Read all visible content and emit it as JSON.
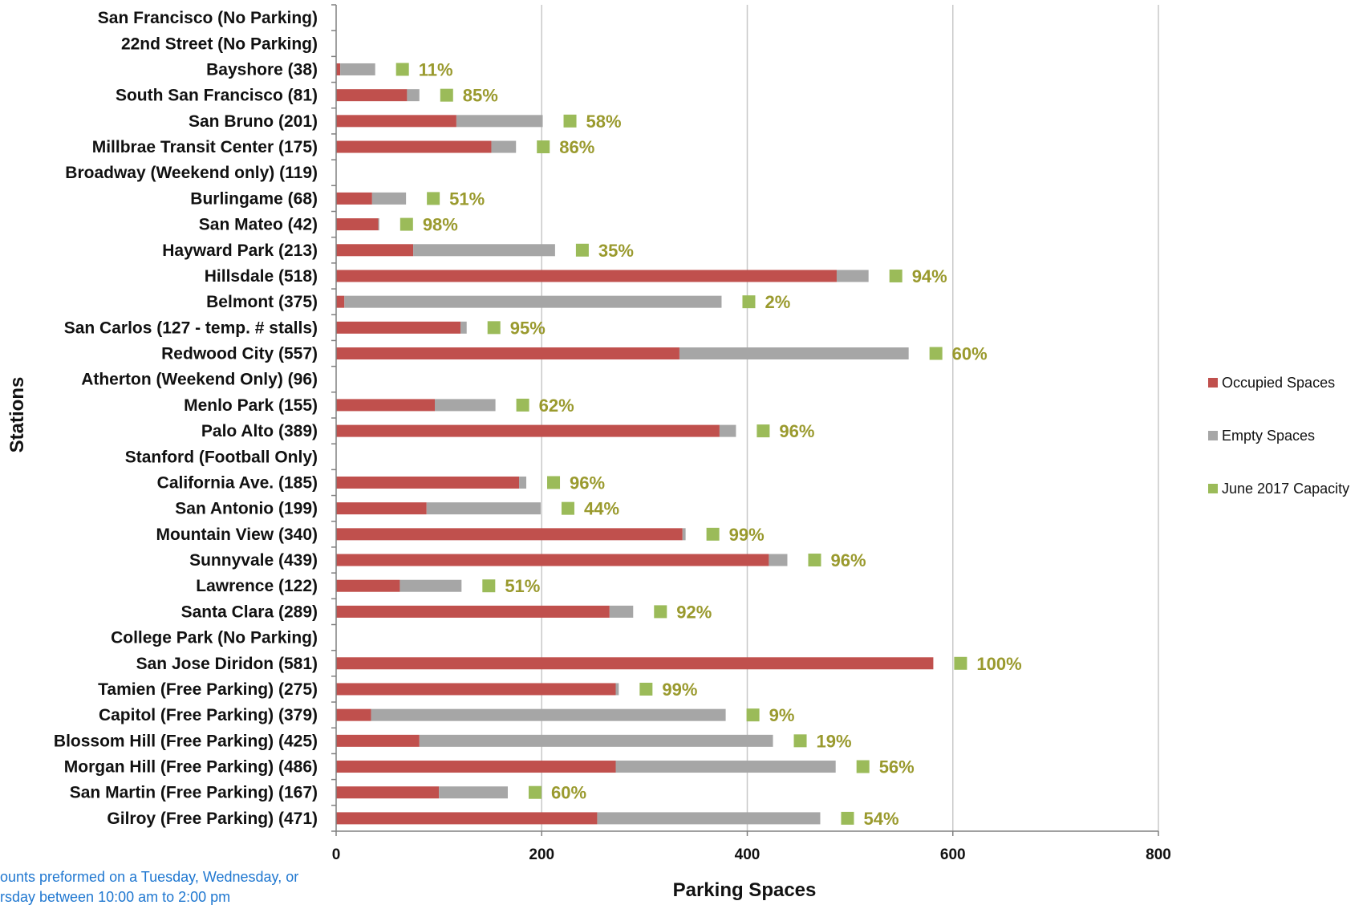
{
  "colors": {
    "occupied": "#C0504D",
    "empty": "#A6A6A6",
    "capacity": "#9BBB59",
    "capacity_text": "#9A9A2E",
    "grid": "#C8C8C8",
    "footnote": "#1F77D0"
  },
  "chart_data": {
    "type": "bar",
    "orientation": "horizontal",
    "stacked": true,
    "xlabel": "Parking Spaces",
    "ylabel": "Stations",
    "xlim": [
      0,
      800
    ],
    "xticks": [
      "0",
      "200",
      "400",
      "600",
      "800"
    ],
    "grid": "vertical",
    "legend_position": "right",
    "categories": [
      "San Francisco (No Parking)",
      "22nd Street (No Parking)",
      "Bayshore  (38)",
      "South San Francisco  (81)",
      "San Bruno  (201)",
      "Millbrae Transit Center  (175)",
      "Broadway (Weekend only) (119)",
      "Burlingame  (68)",
      "San Mateo  (42)",
      "Hayward Park  (213)",
      "Hillsdale  (518)",
      "Belmont  (375)",
      "San Carlos  (127 - temp. # stalls)",
      "Redwood City  (557)",
      "Atherton (Weekend Only) (96)",
      "Menlo Park  (155)",
      "Palo Alto  (389)",
      "Stanford (Football Only)",
      "California Ave.  (185)",
      "San Antonio  (199)",
      "Mountain View  (340)",
      "Sunnyvale  (439)",
      "Lawrence  (122)",
      "Santa Clara  (289)",
      "College Park (No Parking)",
      "San Jose Diridon  (581)",
      "Tamien (Free Parking) (275)",
      "Capitol (Free Parking) (379)",
      "Blossom Hill (Free Parking) (425)",
      "Morgan Hill (Free Parking) (486)",
      "San Martin (Free Parking) (167)",
      "Gilroy (Free Parking) (471)"
    ],
    "series": [
      {
        "name": "Occupied Spaces",
        "values": [
          null,
          null,
          4,
          69,
          117,
          151,
          null,
          35,
          41,
          75,
          487,
          8,
          121,
          334,
          null,
          96,
          373,
          null,
          178,
          88,
          337,
          421,
          62,
          266,
          null,
          581,
          272,
          34,
          81,
          272,
          100,
          254
        ]
      },
      {
        "name": "Empty Spaces",
        "values": [
          null,
          null,
          34,
          12,
          84,
          24,
          null,
          33,
          1,
          138,
          31,
          367,
          6,
          223,
          null,
          59,
          16,
          null,
          7,
          111,
          3,
          18,
          60,
          23,
          null,
          0,
          3,
          345,
          344,
          214,
          67,
          217
        ]
      },
      {
        "name": "June 2017 Capacity",
        "labels": [
          "",
          "",
          "11%",
          "85%",
          "58%",
          "86%",
          "",
          "51%",
          "98%",
          "35%",
          "94%",
          "2%",
          "95%",
          "60%",
          "",
          "62%",
          "96%",
          "",
          "96%",
          "44%",
          "99%",
          "96%",
          "51%",
          "92%",
          "",
          "100%",
          "99%",
          "9%",
          "19%",
          "56%",
          "60%",
          "54%"
        ]
      }
    ]
  },
  "footnote": {
    "line1": "ounts preformed on a Tuesday, Wednesday, or",
    "line2": "rsday between 10:00 am to 2:00 pm"
  }
}
